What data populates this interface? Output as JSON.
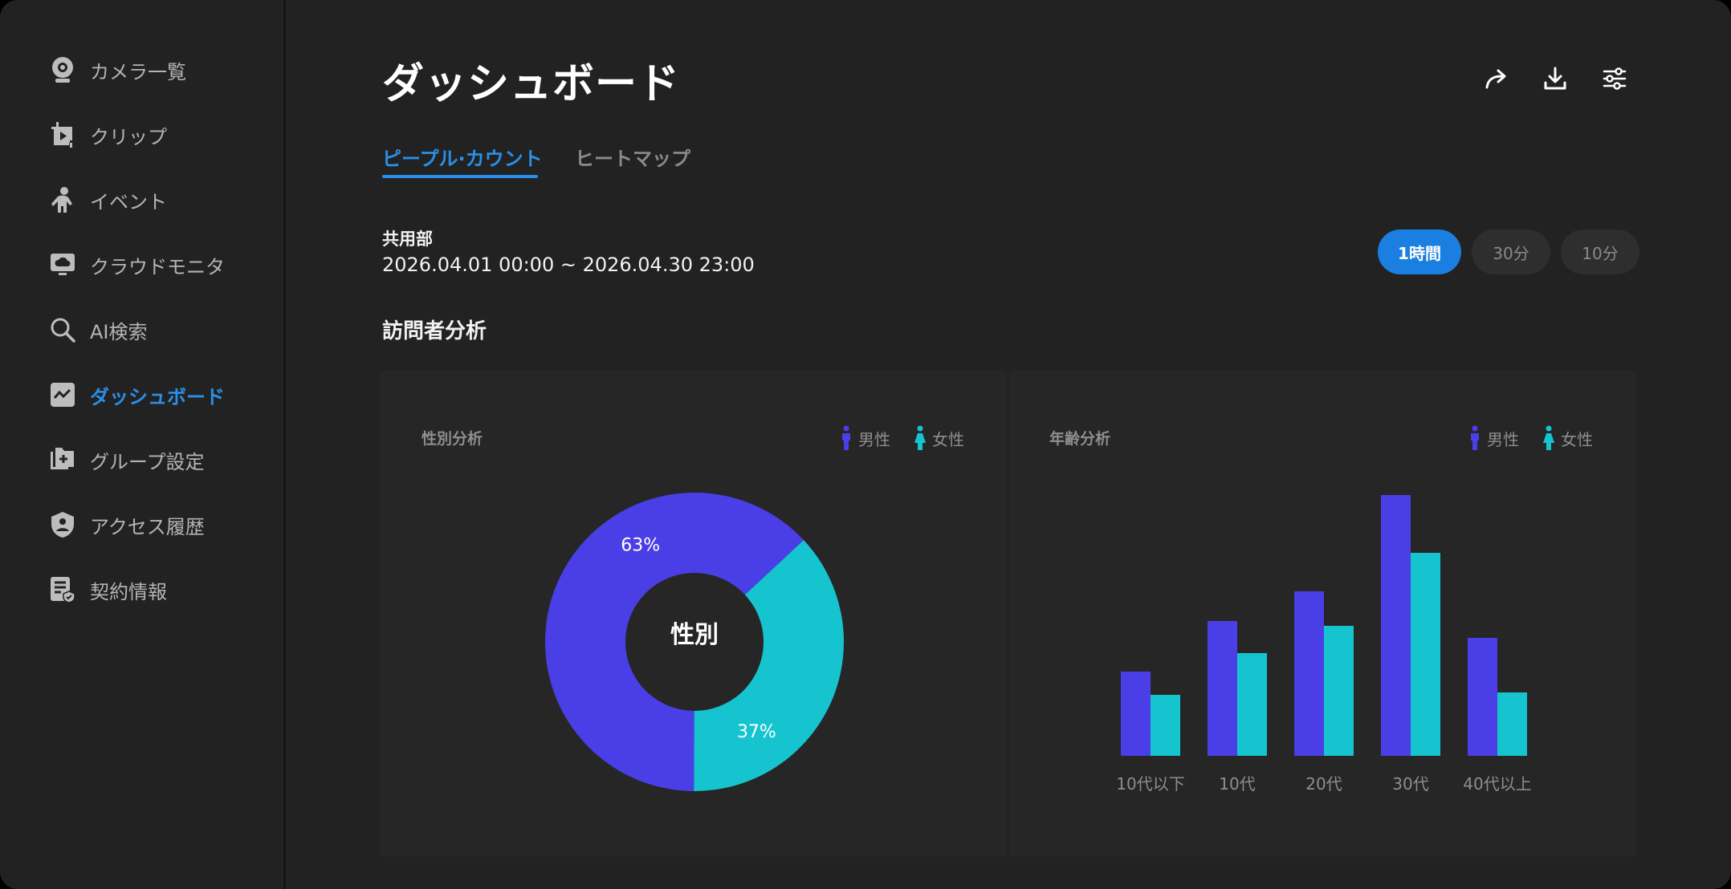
{
  "sidebar": {
    "items": [
      {
        "label": "カメラ一覧",
        "icon": "camera-icon"
      },
      {
        "label": "クリップ",
        "icon": "clip-icon"
      },
      {
        "label": "イベント",
        "icon": "event-person-icon"
      },
      {
        "label": "クラウドモニタ",
        "icon": "cloud-monitor-icon"
      },
      {
        "label": "AI検索",
        "icon": "search-icon"
      },
      {
        "label": "ダッシュボード",
        "icon": "dashboard-icon",
        "active": true
      },
      {
        "label": "グループ設定",
        "icon": "group-settings-icon"
      },
      {
        "label": "アクセス履歴",
        "icon": "access-history-icon"
      },
      {
        "label": "契約情報",
        "icon": "contract-icon"
      }
    ]
  },
  "header": {
    "title": "ダッシュボード",
    "actions": [
      "share-icon",
      "download-icon",
      "filter-settings-icon"
    ]
  },
  "tabs": [
    {
      "label": "ピープル·カウント",
      "active": true
    },
    {
      "label": "ヒートマップ",
      "active": false
    }
  ],
  "info": {
    "location": "共用部",
    "range": "2026.04.01 00:00 ~ 2026.04.30 23:00"
  },
  "intervals": [
    {
      "label": "1時間",
      "active": true
    },
    {
      "label": "30分",
      "active": false
    },
    {
      "label": "10分",
      "active": false
    }
  ],
  "section_title": "訪問者分析",
  "colors": {
    "male": "#4a3fe6",
    "female": "#16c4d0",
    "accent": "#1a7fe0"
  },
  "legend": {
    "male": "男性",
    "female": "女性"
  },
  "gender_panel": {
    "title": "性別分析",
    "center_label": "性別"
  },
  "age_panel": {
    "title": "年齢分析"
  },
  "chart_data": [
    {
      "type": "pie",
      "title": "性別分析",
      "center_label": "性別",
      "labels": [
        "男性",
        "女性"
      ],
      "values": [
        63,
        37
      ],
      "value_labels": [
        "63%",
        "37%"
      ]
    },
    {
      "type": "bar",
      "title": "年齢分析",
      "categories": [
        "10代以下",
        "10代",
        "20代",
        "30代",
        "40代以上"
      ],
      "series": [
        {
          "name": "男性",
          "values": [
            105,
            168,
            205,
            325,
            147
          ]
        },
        {
          "name": "女性",
          "values": [
            76,
            128,
            162,
            253,
            79
          ]
        }
      ],
      "ylim": [
        0,
        330
      ],
      "grid": false,
      "legend": "top-right"
    }
  ]
}
